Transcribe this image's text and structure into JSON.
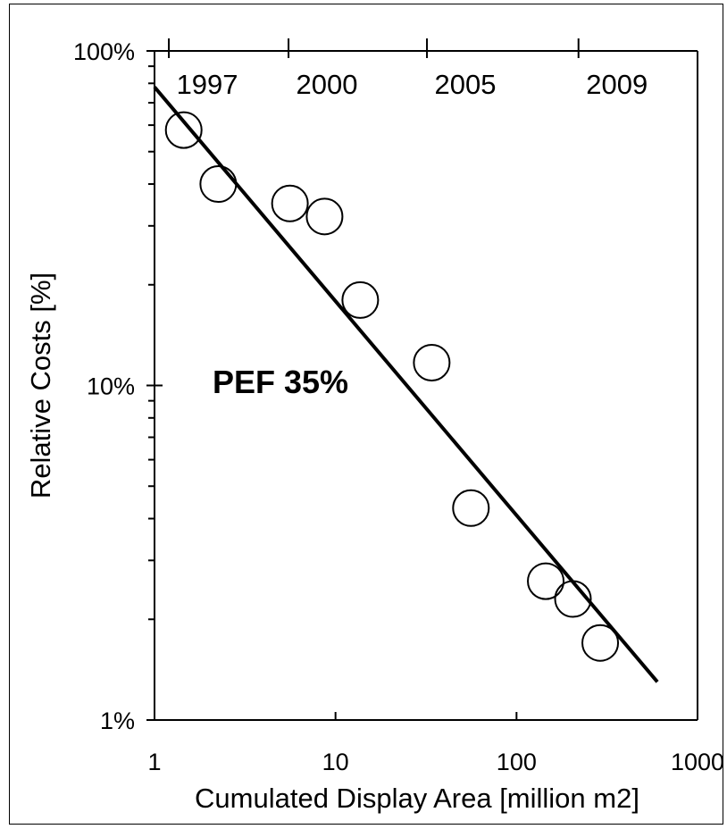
{
  "chart_data": {
    "type": "scatter",
    "title": "",
    "xlabel": "Cumulated Display Area [million m2]",
    "ylabel": "Relative Costs [%]",
    "x_scale": "log",
    "y_scale": "log",
    "xlim": [
      1,
      1000
    ],
    "ylim": [
      1,
      100
    ],
    "x_tick_labels": [
      "1",
      "10",
      "100",
      "1000"
    ],
    "x_tick_values": [
      1,
      10,
      100,
      1000
    ],
    "y_tick_labels": [
      "1%",
      "10%",
      "100%"
    ],
    "y_tick_values": [
      1,
      10,
      100
    ],
    "top_axis_labels": [
      "1997",
      "2000",
      "2005",
      "2009"
    ],
    "top_axis_values": [
      1.2,
      5.5,
      32,
      220
    ],
    "series": [
      {
        "marker": "open-circle",
        "points": [
          {
            "x": 1.45,
            "y": 58
          },
          {
            "x": 2.25,
            "y": 40
          },
          {
            "x": 5.6,
            "y": 35
          },
          {
            "x": 8.7,
            "y": 32
          },
          {
            "x": 13.7,
            "y": 18
          },
          {
            "x": 34,
            "y": 11.7
          },
          {
            "x": 56,
            "y": 4.3
          },
          {
            "x": 145,
            "y": 2.6
          },
          {
            "x": 205,
            "y": 2.3
          },
          {
            "x": 290,
            "y": 1.7
          }
        ]
      }
    ],
    "trendline": {
      "type": "power",
      "points": [
        {
          "x": 1,
          "y": 78
        },
        {
          "x": 600,
          "y": 1.3
        }
      ]
    },
    "annotation": "PEF 35%",
    "grid": false
  }
}
